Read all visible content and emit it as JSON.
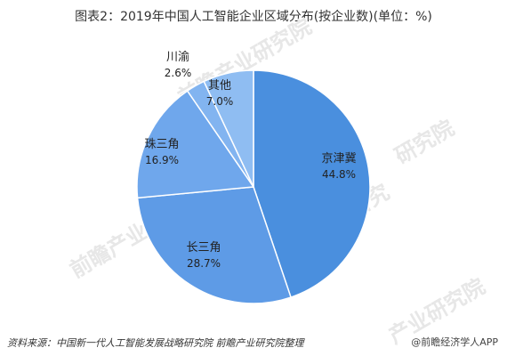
{
  "chart_data": {
    "type": "pie",
    "title": "图表2：2019年中国人工智能企业区域分布(按企业数)(单位：%)",
    "slices": [
      {
        "label": "京津冀",
        "value": 44.8,
        "display": "44.8%",
        "color": "#4a8fde"
      },
      {
        "label": "长三角",
        "value": 28.7,
        "display": "28.7%",
        "color": "#5e9be6"
      },
      {
        "label": "珠三角",
        "value": 16.9,
        "display": "16.9%",
        "color": "#6fa7ec"
      },
      {
        "label": "川渝",
        "value": 2.6,
        "display": "2.6%",
        "color": "#82b4f0"
      },
      {
        "label": "其他",
        "value": 7.0,
        "display": "7.0%",
        "color": "#8fbdf2"
      }
    ]
  },
  "footer": {
    "source": "资料来源：中国新一代人工智能发展战略研究院 前瞻产业研究院整理",
    "brand": "@前瞻经济学人APP"
  }
}
